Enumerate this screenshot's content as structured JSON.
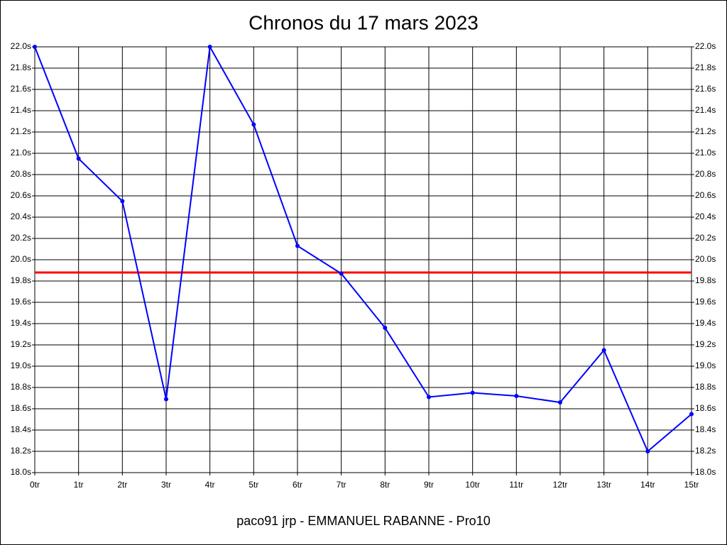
{
  "chart_data": {
    "type": "line",
    "title": "Chronos du 17 mars 2023",
    "footer": "paco91 jrp - EMMANUEL RABANNE - Pro10",
    "x": [
      0,
      1,
      2,
      3,
      4,
      5,
      6,
      7,
      8,
      9,
      10,
      11,
      12,
      13,
      14,
      15
    ],
    "series": [
      {
        "color": "#0000ff",
        "values": [
          22.0,
          20.95,
          20.55,
          18.69,
          22.0,
          21.27,
          20.13,
          19.87,
          19.36,
          18.71,
          18.75,
          18.72,
          18.66,
          19.15,
          18.2,
          18.55
        ]
      }
    ],
    "reference_line": {
      "value": 19.88,
      "color": "#ff0000"
    },
    "xlim": [
      0,
      15
    ],
    "xticks": [
      {
        "value": 0,
        "label": "0tr"
      },
      {
        "value": 1,
        "label": "1tr"
      },
      {
        "value": 2,
        "label": "2tr"
      },
      {
        "value": 3,
        "label": "3tr"
      },
      {
        "value": 4,
        "label": "4tr"
      },
      {
        "value": 5,
        "label": "5tr"
      },
      {
        "value": 6,
        "label": "6tr"
      },
      {
        "value": 7,
        "label": "7tr"
      },
      {
        "value": 8,
        "label": "8tr"
      },
      {
        "value": 9,
        "label": "9tr"
      },
      {
        "value": 10,
        "label": "10tr"
      },
      {
        "value": 11,
        "label": "11tr"
      },
      {
        "value": 12,
        "label": "12tr"
      },
      {
        "value": 13,
        "label": "13tr"
      },
      {
        "value": 14,
        "label": "14tr"
      },
      {
        "value": 15,
        "label": "15tr"
      }
    ],
    "ylim": [
      18.0,
      22.0
    ],
    "yticks": [
      {
        "value": 18.0,
        "label": "18.0s"
      },
      {
        "value": 18.2,
        "label": "18.2s"
      },
      {
        "value": 18.4,
        "label": "18.4s"
      },
      {
        "value": 18.6,
        "label": "18.6s"
      },
      {
        "value": 18.8,
        "label": "18.8s"
      },
      {
        "value": 19.0,
        "label": "19.0s"
      },
      {
        "value": 19.2,
        "label": "19.2s"
      },
      {
        "value": 19.4,
        "label": "19.4s"
      },
      {
        "value": 19.6,
        "label": "19.6s"
      },
      {
        "value": 19.8,
        "label": "19.8s"
      },
      {
        "value": 20.0,
        "label": "20.0s"
      },
      {
        "value": 20.2,
        "label": "20.2s"
      },
      {
        "value": 20.4,
        "label": "20.4s"
      },
      {
        "value": 20.6,
        "label": "20.6s"
      },
      {
        "value": 20.8,
        "label": "20.8s"
      },
      {
        "value": 21.0,
        "label": "21.0s"
      },
      {
        "value": 21.2,
        "label": "21.2s"
      },
      {
        "value": 21.4,
        "label": "21.4s"
      },
      {
        "value": 21.6,
        "label": "21.6s"
      },
      {
        "value": 21.8,
        "label": "21.8s"
      },
      {
        "value": 22.0,
        "label": "22.0s"
      }
    ],
    "grid": true,
    "right_axis_labels": true
  }
}
